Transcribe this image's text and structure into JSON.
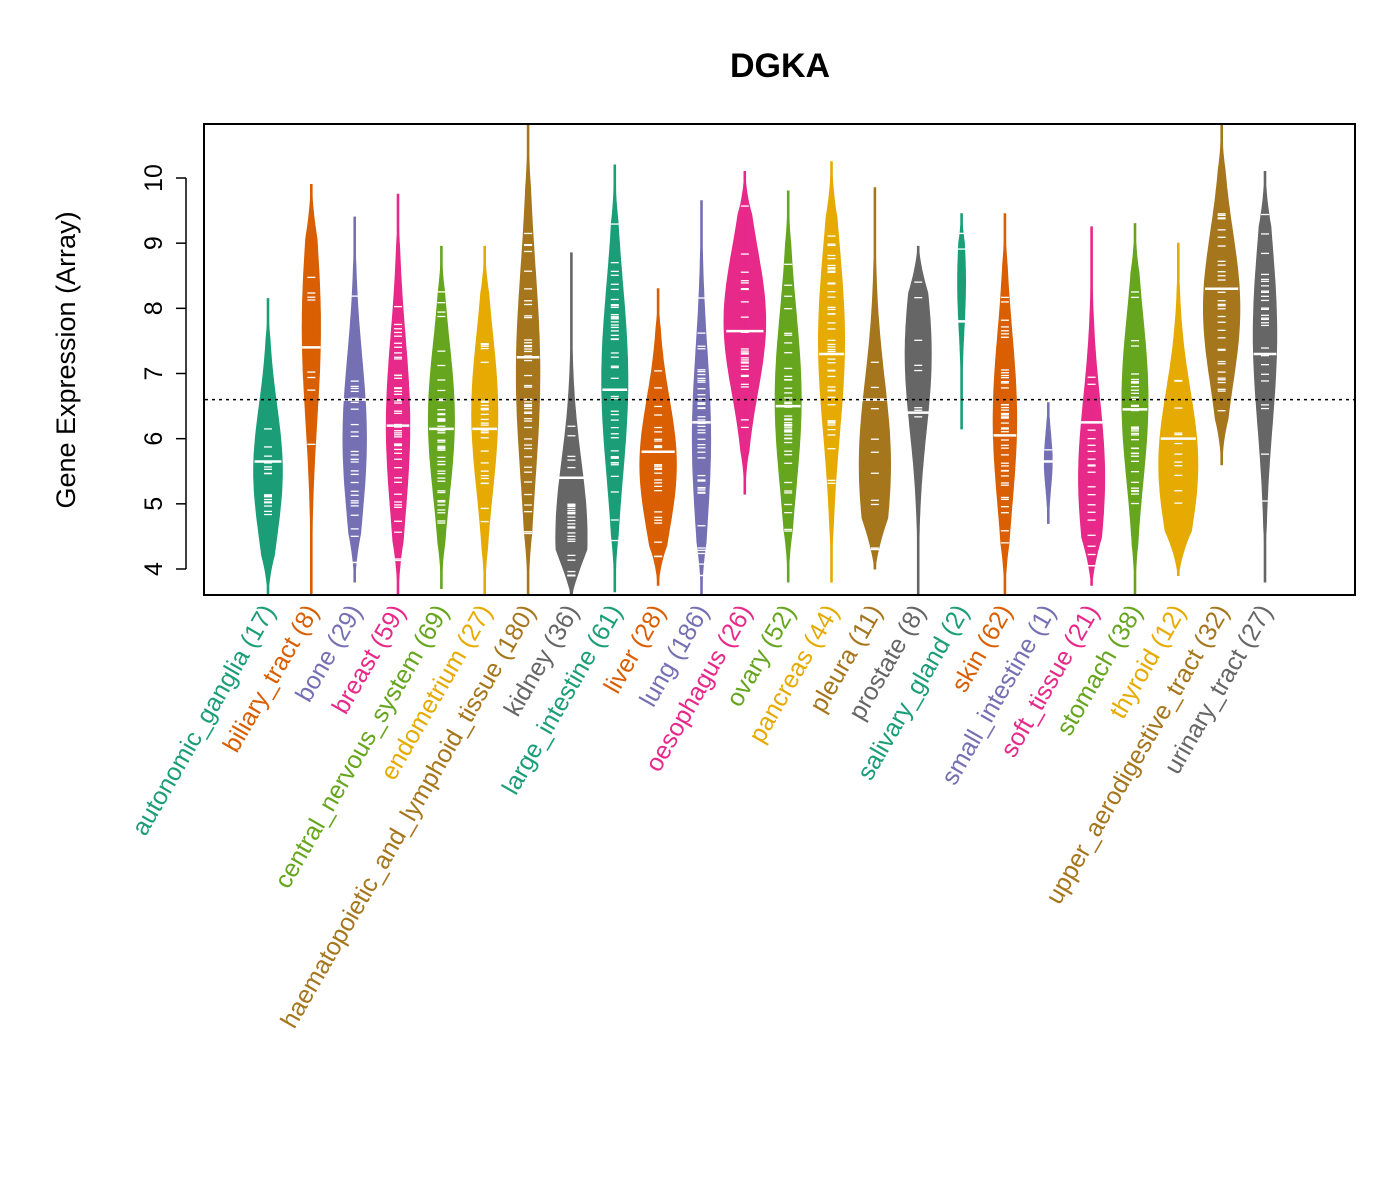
{
  "chart_data": {
    "type": "violin",
    "title": "DGKA",
    "xlabel": "",
    "ylabel": "Gene Expression (Array)",
    "ylim": [
      3.6,
      10.83
    ],
    "yticks": [
      4,
      5,
      6,
      7,
      8,
      9,
      10
    ],
    "reference_line": 6.6,
    "grid": false,
    "legend": "none",
    "categories": [
      {
        "name": "autonomic_ganglia",
        "n": 17,
        "label": "autonomic_ganglia (17)",
        "color": "#1B9E77",
        "min": 3.6,
        "max": 8.15,
        "median": 5.65,
        "mode": 5.5,
        "width": 0.55
      },
      {
        "name": "biliary_tract",
        "n": 8,
        "label": "biliary_tract (8)",
        "color": "#D95F02",
        "min": 3.6,
        "max": 9.9,
        "median": 7.4,
        "mode": 7.7,
        "width": 0.35
      },
      {
        "name": "bone",
        "n": 29,
        "label": "bone (29)",
        "color": "#7570B3",
        "min": 3.8,
        "max": 9.4,
        "median": 6.6,
        "mode": 6.0,
        "width": 0.45
      },
      {
        "name": "breast",
        "n": 59,
        "label": "breast (59)",
        "color": "#E7298A",
        "min": 3.6,
        "max": 9.75,
        "median": 6.2,
        "mode": 6.2,
        "width": 0.45
      },
      {
        "name": "central_nervous_system",
        "n": 69,
        "label": "central_nervous_system (69)",
        "color": "#66A61E",
        "min": 3.7,
        "max": 8.95,
        "median": 6.15,
        "mode": 6.3,
        "width": 0.5
      },
      {
        "name": "endometrium",
        "n": 27,
        "label": "endometrium (27)",
        "color": "#E6AB02",
        "min": 3.6,
        "max": 8.95,
        "median": 6.15,
        "mode": 6.4,
        "width": 0.5
      },
      {
        "name": "haematopoietic_and_lymphoid_tissue",
        "n": 180,
        "label": "haematopoietic_and_lymphoid_tissue (180)",
        "color": "#A6761D",
        "min": 3.6,
        "max": 10.83,
        "median": 7.25,
        "mode": 7.0,
        "width": 0.45
      },
      {
        "name": "kidney",
        "n": 36,
        "label": "kidney (36)",
        "color": "#666666",
        "min": 3.6,
        "max": 8.85,
        "median": 5.4,
        "mode": 4.5,
        "width": 0.6
      },
      {
        "name": "large_intestine",
        "n": 61,
        "label": "large_intestine (61)",
        "color": "#1B9E77",
        "min": 3.65,
        "max": 10.2,
        "median": 6.75,
        "mode": 6.9,
        "width": 0.5
      },
      {
        "name": "liver",
        "n": 28,
        "label": "liver (28)",
        "color": "#D95F02",
        "min": 3.75,
        "max": 8.3,
        "median": 5.8,
        "mode": 5.6,
        "width": 0.7
      },
      {
        "name": "lung",
        "n": 186,
        "label": "lung (186)",
        "color": "#7570B3",
        "min": 3.6,
        "max": 9.65,
        "median": 6.25,
        "mode": 6.0,
        "width": 0.35
      },
      {
        "name": "oesophagus",
        "n": 26,
        "label": "oesophagus (26)",
        "color": "#E7298A",
        "min": 5.15,
        "max": 10.1,
        "median": 7.65,
        "mode": 7.8,
        "width": 0.8
      },
      {
        "name": "ovary",
        "n": 52,
        "label": "ovary (52)",
        "color": "#66A61E",
        "min": 3.8,
        "max": 9.8,
        "median": 6.5,
        "mode": 6.6,
        "width": 0.5
      },
      {
        "name": "pancreas",
        "n": 44,
        "label": "pancreas (44)",
        "color": "#E6AB02",
        "min": 3.8,
        "max": 10.25,
        "median": 7.3,
        "mode": 7.5,
        "width": 0.5
      },
      {
        "name": "pleura",
        "n": 11,
        "label": "pleura (11)",
        "color": "#A6761D",
        "min": 4.0,
        "max": 9.85,
        "median": 6.6,
        "mode": 5.6,
        "width": 0.6
      },
      {
        "name": "prostate",
        "n": 8,
        "label": "prostate (8)",
        "color": "#666666",
        "min": 3.6,
        "max": 8.95,
        "median": 6.4,
        "mode": 7.3,
        "width": 0.5
      },
      {
        "name": "salivary_gland",
        "n": 2,
        "label": "salivary_gland (2)",
        "color": "#1B9E77",
        "min": 6.15,
        "max": 9.45,
        "median": 7.8,
        "mode": 8.4,
        "width": 0.15
      },
      {
        "name": "skin",
        "n": 62,
        "label": "skin (62)",
        "color": "#D95F02",
        "min": 3.6,
        "max": 9.45,
        "median": 6.05,
        "mode": 6.3,
        "width": 0.45
      },
      {
        "name": "small_intestine",
        "n": 1,
        "label": "small_intestine (1)",
        "color": "#7570B3",
        "min": 4.7,
        "max": 6.55,
        "median": 5.65,
        "mode": 5.65,
        "width": 0.15
      },
      {
        "name": "soft_tissue",
        "n": 21,
        "label": "soft_tissue (21)",
        "color": "#E7298A",
        "min": 3.75,
        "max": 9.25,
        "median": 6.25,
        "mode": 5.4,
        "width": 0.5
      },
      {
        "name": "stomach",
        "n": 38,
        "label": "stomach (38)",
        "color": "#66A61E",
        "min": 3.6,
        "max": 9.3,
        "median": 6.45,
        "mode": 6.6,
        "width": 0.5
      },
      {
        "name": "thyroid",
        "n": 12,
        "label": "thyroid (12)",
        "color": "#E6AB02",
        "min": 3.9,
        "max": 9.0,
        "median": 6.0,
        "mode": 5.6,
        "width": 0.75
      },
      {
        "name": "upper_aerodigestive_tract",
        "n": 32,
        "label": "upper_aerodigestive_tract (32)",
        "color": "#A6761D",
        "min": 5.6,
        "max": 10.83,
        "median": 8.3,
        "mode": 8.0,
        "width": 0.7
      },
      {
        "name": "urinary_tract",
        "n": 27,
        "label": "urinary_tract (27)",
        "color": "#666666",
        "min": 3.8,
        "max": 10.1,
        "median": 7.3,
        "mode": 7.6,
        "width": 0.45
      }
    ]
  }
}
